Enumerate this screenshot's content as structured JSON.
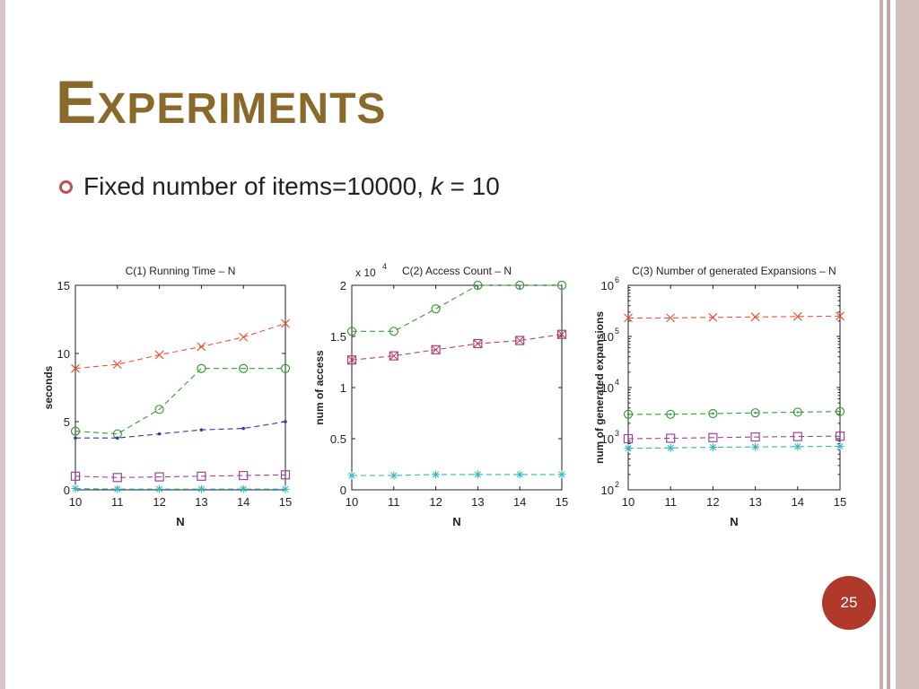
{
  "slide": {
    "title": "Experiments",
    "bullet_main": "Fixed number of items=10000, ",
    "bullet_var": "k",
    "bullet_rest": " = 10",
    "page_number": "25"
  },
  "colors": {
    "title": "#8a6a2a",
    "accent": "#c0504d",
    "badge": "#b0392b"
  },
  "chart_data": [
    {
      "type": "line",
      "title": "C(1) Running Time – N",
      "xlabel": "N",
      "ylabel": "seconds",
      "x": [
        10,
        11,
        12,
        13,
        14,
        15
      ],
      "xlim": [
        10,
        15
      ],
      "ylim": [
        0,
        15
      ],
      "yscale": "linear",
      "yticks": [
        0,
        5,
        10,
        15
      ],
      "ytick_labels": [
        "0",
        "5",
        "10",
        "15"
      ],
      "grid": false,
      "series": [
        {
          "marker": "x",
          "color": "#e8553a",
          "values": [
            8.9,
            9.2,
            9.9,
            10.5,
            11.2,
            12.2
          ]
        },
        {
          "marker": "o",
          "color": "#3a9a3a",
          "values": [
            4.3,
            4.1,
            5.9,
            8.9,
            8.9,
            8.9
          ]
        },
        {
          "marker": "dot",
          "color": "#2a3aa8",
          "values": [
            3.8,
            3.8,
            4.1,
            4.4,
            4.5,
            5.0
          ]
        },
        {
          "marker": "square",
          "color": "#a040a0",
          "values": [
            1.0,
            0.9,
            0.95,
            1.0,
            1.05,
            1.1
          ]
        },
        {
          "marker": "star",
          "color": "#30b8b8",
          "values": [
            0.1,
            0.05,
            0.05,
            0.05,
            0.05,
            0.05
          ]
        }
      ]
    },
    {
      "type": "line",
      "title": "C(2) Access Count – N",
      "multiplier_label": "x 10",
      "multiplier_exp": "4",
      "xlabel": "N",
      "ylabel": "num of access",
      "x": [
        10,
        11,
        12,
        13,
        14,
        15
      ],
      "xlim": [
        10,
        15
      ],
      "ylim": [
        0,
        2
      ],
      "yscale": "linear",
      "yticks": [
        0,
        0.5,
        1,
        1.5,
        2
      ],
      "ytick_labels": [
        "0",
        "0.5",
        "1",
        "1.5",
        "2"
      ],
      "grid": false,
      "series": [
        {
          "marker": "o",
          "color": "#3a9a3a",
          "values": [
            1.55,
            1.55,
            1.77,
            2.0,
            2.0,
            2.0
          ]
        },
        {
          "marker": "xsquare",
          "color": "#b04070",
          "values": [
            1.27,
            1.31,
            1.37,
            1.43,
            1.46,
            1.52
          ]
        },
        {
          "marker": "star",
          "color": "#30b8b8",
          "values": [
            0.14,
            0.14,
            0.15,
            0.15,
            0.15,
            0.15
          ]
        }
      ]
    },
    {
      "type": "line",
      "title": "C(3) Number of generated Expansions – N",
      "xlabel": "N",
      "ylabel": "num of generated expansions",
      "x": [
        10,
        11,
        12,
        13,
        14,
        15
      ],
      "xlim": [
        10,
        15
      ],
      "ylim": [
        100,
        1000000
      ],
      "yscale": "log",
      "yticks": [
        100,
        1000,
        10000,
        100000,
        1000000
      ],
      "ytick_base": "10",
      "ytick_exps": [
        "2",
        "3",
        "4",
        "5",
        "6"
      ],
      "grid": false,
      "series": [
        {
          "marker": "x",
          "color": "#e8553a",
          "values": [
            230000,
            230000,
            235000,
            240000,
            245000,
            250000
          ]
        },
        {
          "marker": "odot",
          "color": "#3a9a3a",
          "values": [
            3000,
            3000,
            3100,
            3200,
            3300,
            3400
          ]
        },
        {
          "marker": "square",
          "color": "#a040a0",
          "values": [
            1000,
            1020,
            1050,
            1080,
            1100,
            1120
          ]
        },
        {
          "marker": "star",
          "color": "#30b8b8",
          "values": [
            650,
            660,
            680,
            690,
            700,
            710
          ]
        }
      ]
    }
  ]
}
